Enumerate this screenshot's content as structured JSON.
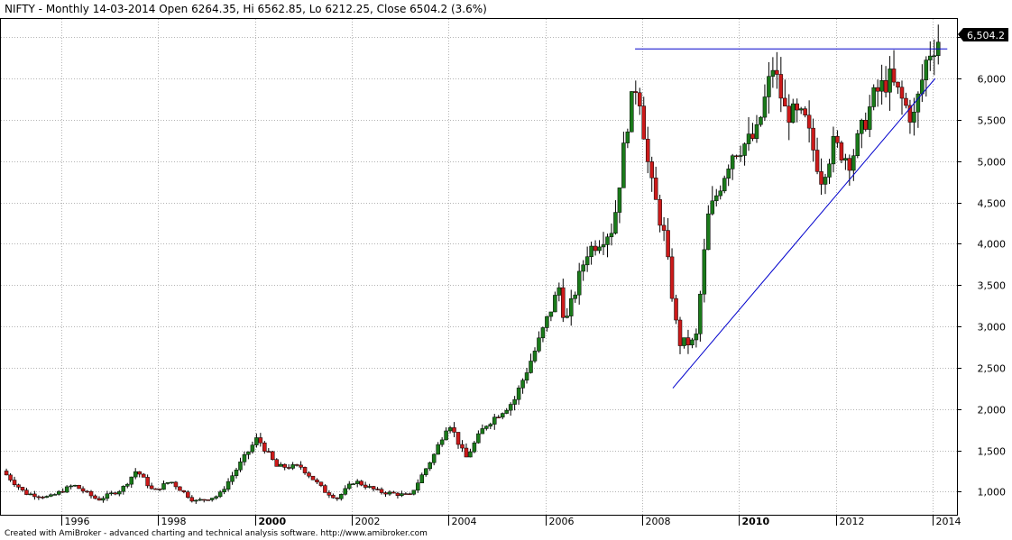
{
  "chart_data": {
    "type": "candlestick",
    "title": "NIFTY - Monthly 14-03-2014 Open 6264.35, Hi 6562.85, Lo 6212.25, Close 6504.2 (3.6%)",
    "footer": "Created with AmiBroker - advanced charting and technical analysis software. http://www.amibroker.com",
    "last_price_label": "6,504.2",
    "x_range": [
      1994.8,
      2014.55
    ],
    "ylim": [
      720,
      6720
    ],
    "y_ticks": [
      1000,
      1500,
      2000,
      2500,
      3000,
      3500,
      4000,
      4500,
      5000,
      5500,
      6000,
      6500
    ],
    "y_tick_labels": [
      "1,000",
      "1,500",
      "2,000",
      "2,500",
      "3,000",
      "3,500",
      "4,000",
      "4,500",
      "5,000",
      "5,500",
      "6,000"
    ],
    "x_ticks": [
      1996,
      1998,
      2000,
      2002,
      2004,
      2006,
      2008,
      2010,
      2012,
      2014
    ],
    "x_tick_labels": [
      "1996",
      "1998",
      "2000",
      "2002",
      "2004",
      "2006",
      "2008",
      "2010",
      "2012",
      "2014"
    ],
    "x_bold_ticks": [
      "2000",
      "2010"
    ],
    "grid": true,
    "colors": {
      "up": "#1a7a1a",
      "down": "#cc1a1a",
      "trendline": "#0000cc",
      "grid": "#b4b4b4",
      "text": "#000000"
    },
    "anchors": [
      [
        1994.83,
        1250
      ],
      [
        1995.3,
        980
      ],
      [
        1995.8,
        930
      ],
      [
        1996.3,
        1080
      ],
      [
        1996.8,
        900
      ],
      [
        1997.3,
        1030
      ],
      [
        1997.6,
        1260
      ],
      [
        1997.95,
        1000
      ],
      [
        1998.3,
        1130
      ],
      [
        1998.8,
        880
      ],
      [
        1999.3,
        950
      ],
      [
        1999.7,
        1300
      ],
      [
        2000.1,
        1650
      ],
      [
        2000.5,
        1300
      ],
      [
        2001.0,
        1300
      ],
      [
        2001.5,
        1000
      ],
      [
        2001.75,
        920
      ],
      [
        2002.1,
        1130
      ],
      [
        2002.6,
        1000
      ],
      [
        2003.25,
        950
      ],
      [
        2003.75,
        1450
      ],
      [
        2004.05,
        1850
      ],
      [
        2004.4,
        1400
      ],
      [
        2004.8,
        1800
      ],
      [
        2005.4,
        2100
      ],
      [
        2005.9,
        2800
      ],
      [
        2006.35,
        3500
      ],
      [
        2006.45,
        3000
      ],
      [
        2006.9,
        3900
      ],
      [
        2007.45,
        4200
      ],
      [
        2007.75,
        5500
      ],
      [
        2007.95,
        6000
      ],
      [
        2008.2,
        4800
      ],
      [
        2008.5,
        4100
      ],
      [
        2008.8,
        2800
      ],
      [
        2009.15,
        2800
      ],
      [
        2009.4,
        4300
      ],
      [
        2009.9,
        5100
      ],
      [
        2010.4,
        5300
      ],
      [
        2010.75,
        6150
      ],
      [
        2011.0,
        5600
      ],
      [
        2011.4,
        5500
      ],
      [
        2011.75,
        4800
      ],
      [
        2012.0,
        5200
      ],
      [
        2012.35,
        5000
      ],
      [
        2012.85,
        5800
      ],
      [
        2013.15,
        6000
      ],
      [
        2013.45,
        5700
      ],
      [
        2013.65,
        5500
      ],
      [
        2013.95,
        6300
      ],
      [
        2014.2,
        6500
      ]
    ],
    "trendlines": [
      {
        "name": "resistance",
        "points": [
          [
            2007.9,
            6357
          ],
          [
            2014.35,
            6357
          ]
        ]
      },
      {
        "name": "support",
        "points": [
          [
            2008.68,
            2252
          ],
          [
            2014.1,
            6000
          ]
        ]
      }
    ]
  }
}
